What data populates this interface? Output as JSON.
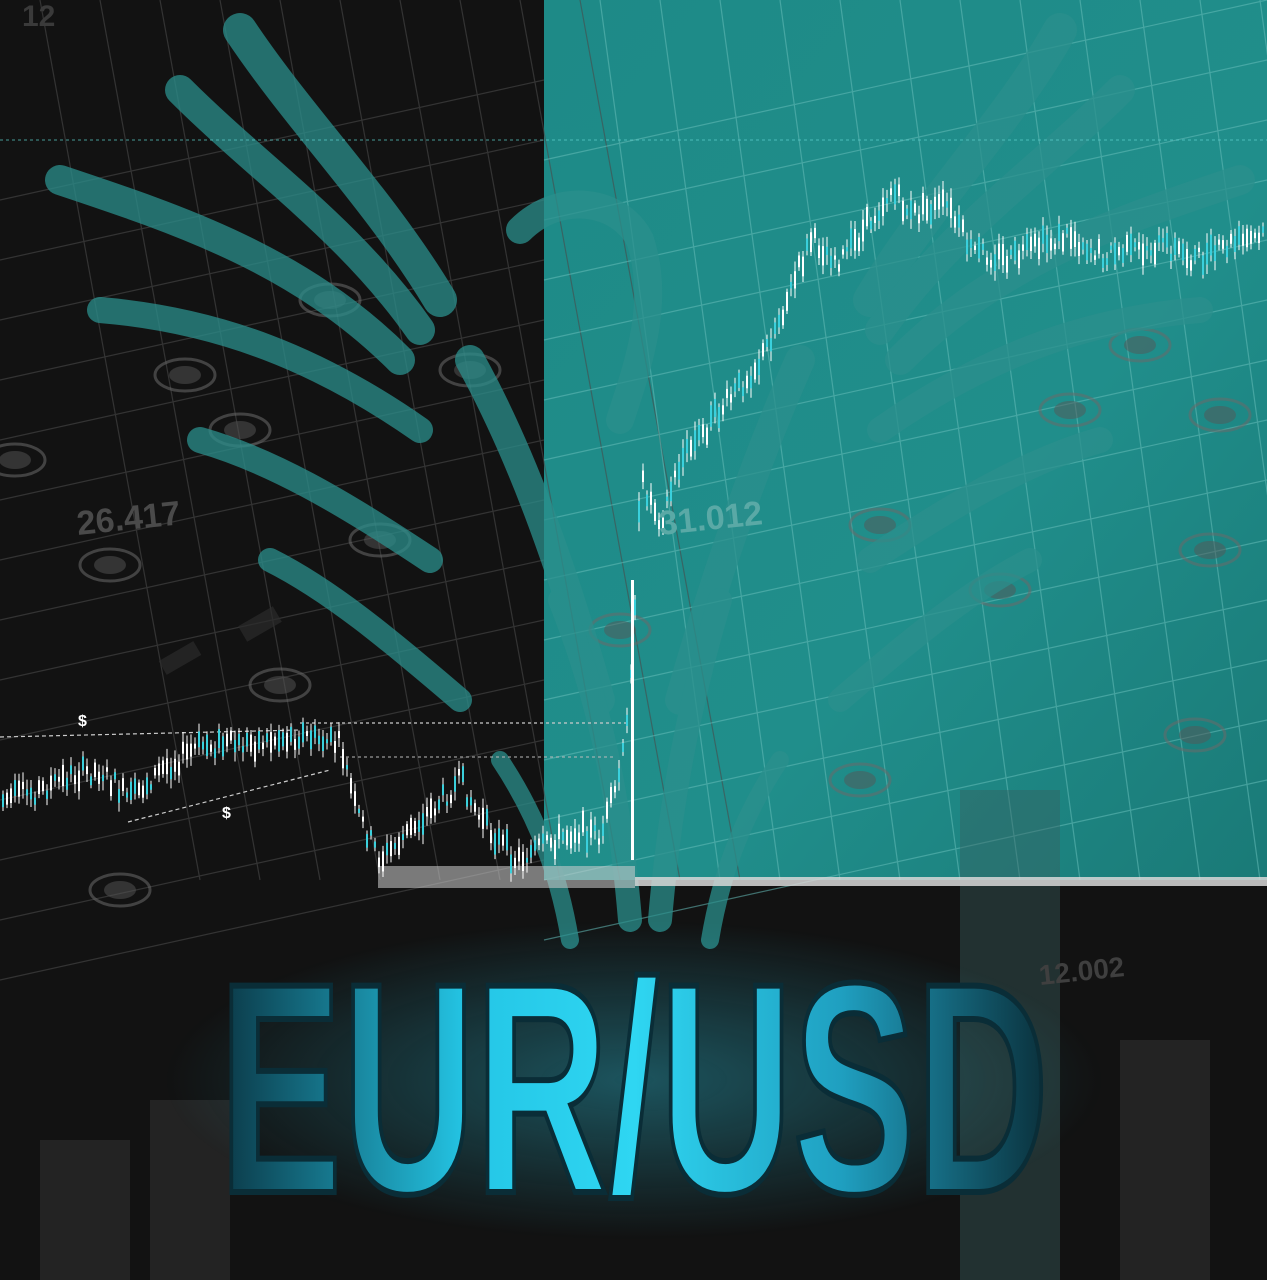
{
  "title": "EUR/USD",
  "background_labels": {
    "left_value": "26.417",
    "center_value": "31.012",
    "right_value": "12.002",
    "top_corner": "12"
  },
  "markers": {
    "dollar_top": "$",
    "dollar_bottom": "$"
  },
  "colors": {
    "dark_background": "#111111",
    "teal_panel": "#1f8a87",
    "accent_cyan": "#2fd0ec",
    "emblem": "#2a8c89",
    "candles": "#ffffff"
  },
  "icons": {
    "emblem": "phoenix-emblem-icon"
  }
}
